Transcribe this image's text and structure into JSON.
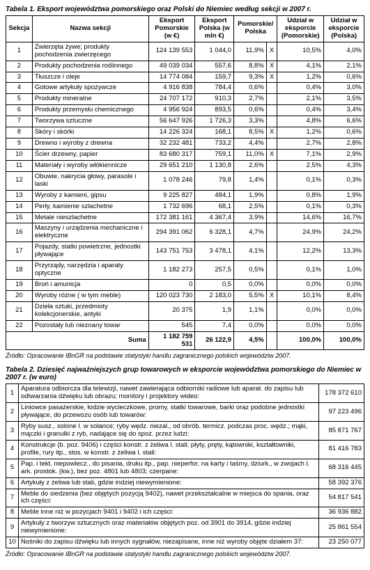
{
  "table1": {
    "caption": "Tabela 1.  Eksport województwa pomorskiego oraz Polski do Niemiec według sekcji w 2007 r.",
    "headers": {
      "h0": "Sekcja",
      "h1": "Nazwa sekcji",
      "h2": "Eksport Pomorskie (w €)",
      "h3": "Eksport Polska (w mln €)",
      "h4": "Pomorskie/ Polska",
      "h5": "Udział w eksporcie (Pomorskie)",
      "h6": "Udział w eksporcie (Polska)"
    },
    "rows": [
      {
        "n": "1",
        "name": "Zwierzęta żywe; produkty pochodzenia zwierzęcego",
        "e_pom": "124 139 553",
        "e_pl": "1 044,0",
        "pp": "11,9%",
        "x": "X",
        "u_pom": "10,5%",
        "u_pl": "4,0%"
      },
      {
        "n": "2",
        "name": "Produkty pochodzenia roślinnego",
        "e_pom": "49 039 034",
        "e_pl": "557,6",
        "pp": "8,8%",
        "x": "X",
        "u_pom": "4,1%",
        "u_pl": "2,1%"
      },
      {
        "n": "3",
        "name": "Tłuszcze i oleje",
        "e_pom": "14 774 084",
        "e_pl": "159,7",
        "pp": "9,3%",
        "x": "X",
        "u_pom": "1,2%",
        "u_pl": "0,6%"
      },
      {
        "n": "4",
        "name": "Gotowe artykuły spożywcze",
        "e_pom": "4 916 838",
        "e_pl": "784,4",
        "pp": "0,6%",
        "x": "",
        "u_pom": "0,4%",
        "u_pl": "3,0%"
      },
      {
        "n": "5",
        "name": "Produkty mineralne",
        "e_pom": "24 707 172",
        "e_pl": "910,3",
        "pp": "2,7%",
        "x": "",
        "u_pom": "2,1%",
        "u_pl": "3,5%"
      },
      {
        "n": "6",
        "name": "Produkty przemysłu chemicznego",
        "e_pom": "4 956 924",
        "e_pl": "893,5",
        "pp": "0,6%",
        "x": "",
        "u_pom": "0,4%",
        "u_pl": "3,4%"
      },
      {
        "n": "7",
        "name": "Tworzywa sztuczne",
        "e_pom": "56 647 926",
        "e_pl": "1 726,3",
        "pp": "3,3%",
        "x": "",
        "u_pom": "4,8%",
        "u_pl": "6,6%"
      },
      {
        "n": "8",
        "name": "Skóry i skórki",
        "e_pom": "14 226 324",
        "e_pl": "168,1",
        "pp": "8,5%",
        "x": "X",
        "u_pom": "1,2%",
        "u_pl": "0,6%"
      },
      {
        "n": "9",
        "name": "Drewno i wyroby z drewna",
        "e_pom": "32 232 481",
        "e_pl": "733,2",
        "pp": "4,4%",
        "x": "",
        "u_pom": "2,7%",
        "u_pl": "2,8%"
      },
      {
        "n": "10",
        "name": "Ścier drzewny, papier",
        "e_pom": "83 680 317",
        "e_pl": "759,1",
        "pp": "11,0%",
        "x": "X",
        "u_pom": "7,1%",
        "u_pl": "2,9%"
      },
      {
        "n": "11",
        "name": "Materiały i wyroby włókiennicze",
        "e_pom": "29 651 210",
        "e_pl": "1 130,8",
        "pp": "2,6%",
        "x": "",
        "u_pom": "2,5%",
        "u_pl": "4,3%"
      },
      {
        "n": "12",
        "name": "Obuwie, nakrycia głowy, parasole i laski",
        "e_pom": "1 078 246",
        "e_pl": "79,8",
        "pp": "1,4%",
        "x": "",
        "u_pom": "0,1%",
        "u_pl": "0,3%"
      },
      {
        "n": "13",
        "name": "Wyroby z kamieni, gipsu",
        "e_pom": "9 225 827",
        "e_pl": "484,1",
        "pp": "1,9%",
        "x": "",
        "u_pom": "0,8%",
        "u_pl": "1,9%"
      },
      {
        "n": "14",
        "name": "Perły, kamienie szlachetne",
        "e_pom": "1 732 696",
        "e_pl": "68,1",
        "pp": "2,5%",
        "x": "",
        "u_pom": "0,1%",
        "u_pl": "0,3%"
      },
      {
        "n": "15",
        "name": "Metale nieszlachetne",
        "e_pom": "172 381 161",
        "e_pl": "4 367,4",
        "pp": "3,9%",
        "x": "",
        "u_pom": "14,6%",
        "u_pl": "16,7%"
      },
      {
        "n": "16",
        "name": "Maszyny i urządzenia mechaniczne i elektryczne",
        "e_pom": "294 391 062",
        "e_pl": "6 328,1",
        "pp": "4,7%",
        "x": "",
        "u_pom": "24,9%",
        "u_pl": "24,2%"
      },
      {
        "n": "17",
        "name": "Pojazdy, statki powietrzne, jednostki pływające",
        "e_pom": "143 751 753",
        "e_pl": "3 478,1",
        "pp": "4,1%",
        "x": "",
        "u_pom": "12,2%",
        "u_pl": "13,3%"
      },
      {
        "n": "18",
        "name": "Przyrządy, narzędzia i aparaty optyczne",
        "e_pom": "1 182 273",
        "e_pl": "257,5",
        "pp": "0,5%",
        "x": "",
        "u_pom": "0,1%",
        "u_pl": "1,0%"
      },
      {
        "n": "19",
        "name": "Broń i amunicja",
        "e_pom": "0",
        "e_pl": "0,5",
        "pp": "0,0%",
        "x": "",
        "u_pom": "0,0%",
        "u_pl": "0,0%"
      },
      {
        "n": "20",
        "name": "Wyroby różne ( w tym meble)",
        "e_pom": "120 023 730",
        "e_pl": "2 183,0",
        "pp": "5,5%",
        "x": "X",
        "u_pom": "10,1%",
        "u_pl": "8,4%"
      },
      {
        "n": "21",
        "name": "Dzieła sztuki, przedmioty kolekcjonerskie, antyki",
        "e_pom": "20 375",
        "e_pl": "1,9",
        "pp": "1,1%",
        "x": "",
        "u_pom": "0,0%",
        "u_pl": "0,0%"
      },
      {
        "n": "22",
        "name": "Pozostały lub nieznany towar",
        "e_pom": "545",
        "e_pl": "7,4",
        "pp": "0,0%",
        "x": "",
        "u_pom": "0,0%",
        "u_pl": "0,0%"
      }
    ],
    "sum": {
      "label": "Suma",
      "e_pom": "1 182 759 531",
      "e_pl": "26 122,9",
      "pp": "4,5%",
      "x": "",
      "u_pom": "100,0%",
      "u_pl": "100,0%"
    },
    "source": "Źródło: Opracowanie IBnGR na podstawie statystyki handlu zagranicznego polskich województw 2007."
  },
  "table2": {
    "caption": "Tabela 2.  Dziesięć najważniejszych grup towarowych w eksporcie województwa pomorskiego do Niemiec w 2007 r. (w euro)",
    "rows": [
      {
        "n": "1",
        "name": "Aparatura odbiorcza dla telewizji, nawet zawierająca odbiorniki radiowe lub aparat. do zapisu lub odtwarzania dźwięku lub obrazu; monitory i projektory wideo:",
        "val": "178 372 610"
      },
      {
        "n": "2",
        "name": "Liniowce pasażerskie, łodzie wycieczkowe, promy, statki towarowe, barki oraz podobne jednostki pływające, do przewozu osób lub towarów:",
        "val": "97 223 496"
      },
      {
        "n": "3",
        "name": "Ryby susz., solone l. w solance; ryby wędz. niezal., od obrób. termicz. podczas proc. wędz.; mąki, mączki i granulki z ryb, nadające się do spoż. przez ludzi:",
        "val": "85 871 767"
      },
      {
        "n": "4",
        "name": "Konstrukcje (b. poz. 9406) i części konstr. z żeliwa l. stali; płyty, pręty, kątowniki, kształtowniki, profile, rury itp., stos. w konstr. z żeliwa l. stali:",
        "val": "81 416 783"
      },
      {
        "n": "5",
        "name": "Pap. i tekt. niepowlecz., do pisania, druku itp., pap. nieperfor. na karty i taśmy, dziurk., w zwojach l. ark. prostok. (kw.), bez poz. 4801 lub 4803; czerpane:",
        "val": "68 316 445"
      },
      {
        "n": "6",
        "name": "Artykuły z żeliwa lub stali, gdzie indziej niewymienione:",
        "val": "58 392 376"
      },
      {
        "n": "7",
        "name": "Meble do siedzenia (bez objętych pozycją 9402), nawet przekształcalne w miejsca do spania, oraz ich części:",
        "val": "54 817 541"
      },
      {
        "n": "8",
        "name": "Meble inne niż w pozycjach 9401 i 9402 i ich części:",
        "val": "36 936 882"
      },
      {
        "n": "9",
        "name": "Artykuły z tworzyw sztucznych oraz materiałów objętych poz. od 3901 do 3914, gdzie indziej niewymienione:",
        "val": "25 861 554"
      },
      {
        "n": "10",
        "name": "Nośniki do zapisu dźwięku lub innych sygnałów, niezapisane, inne niż wyroby objęte działem 37:",
        "val": "23 250 077"
      }
    ],
    "source": "Źródło: Opracowanie IBnGR na podstawie statystyki handlu zagranicznego polskich województw 2007."
  }
}
